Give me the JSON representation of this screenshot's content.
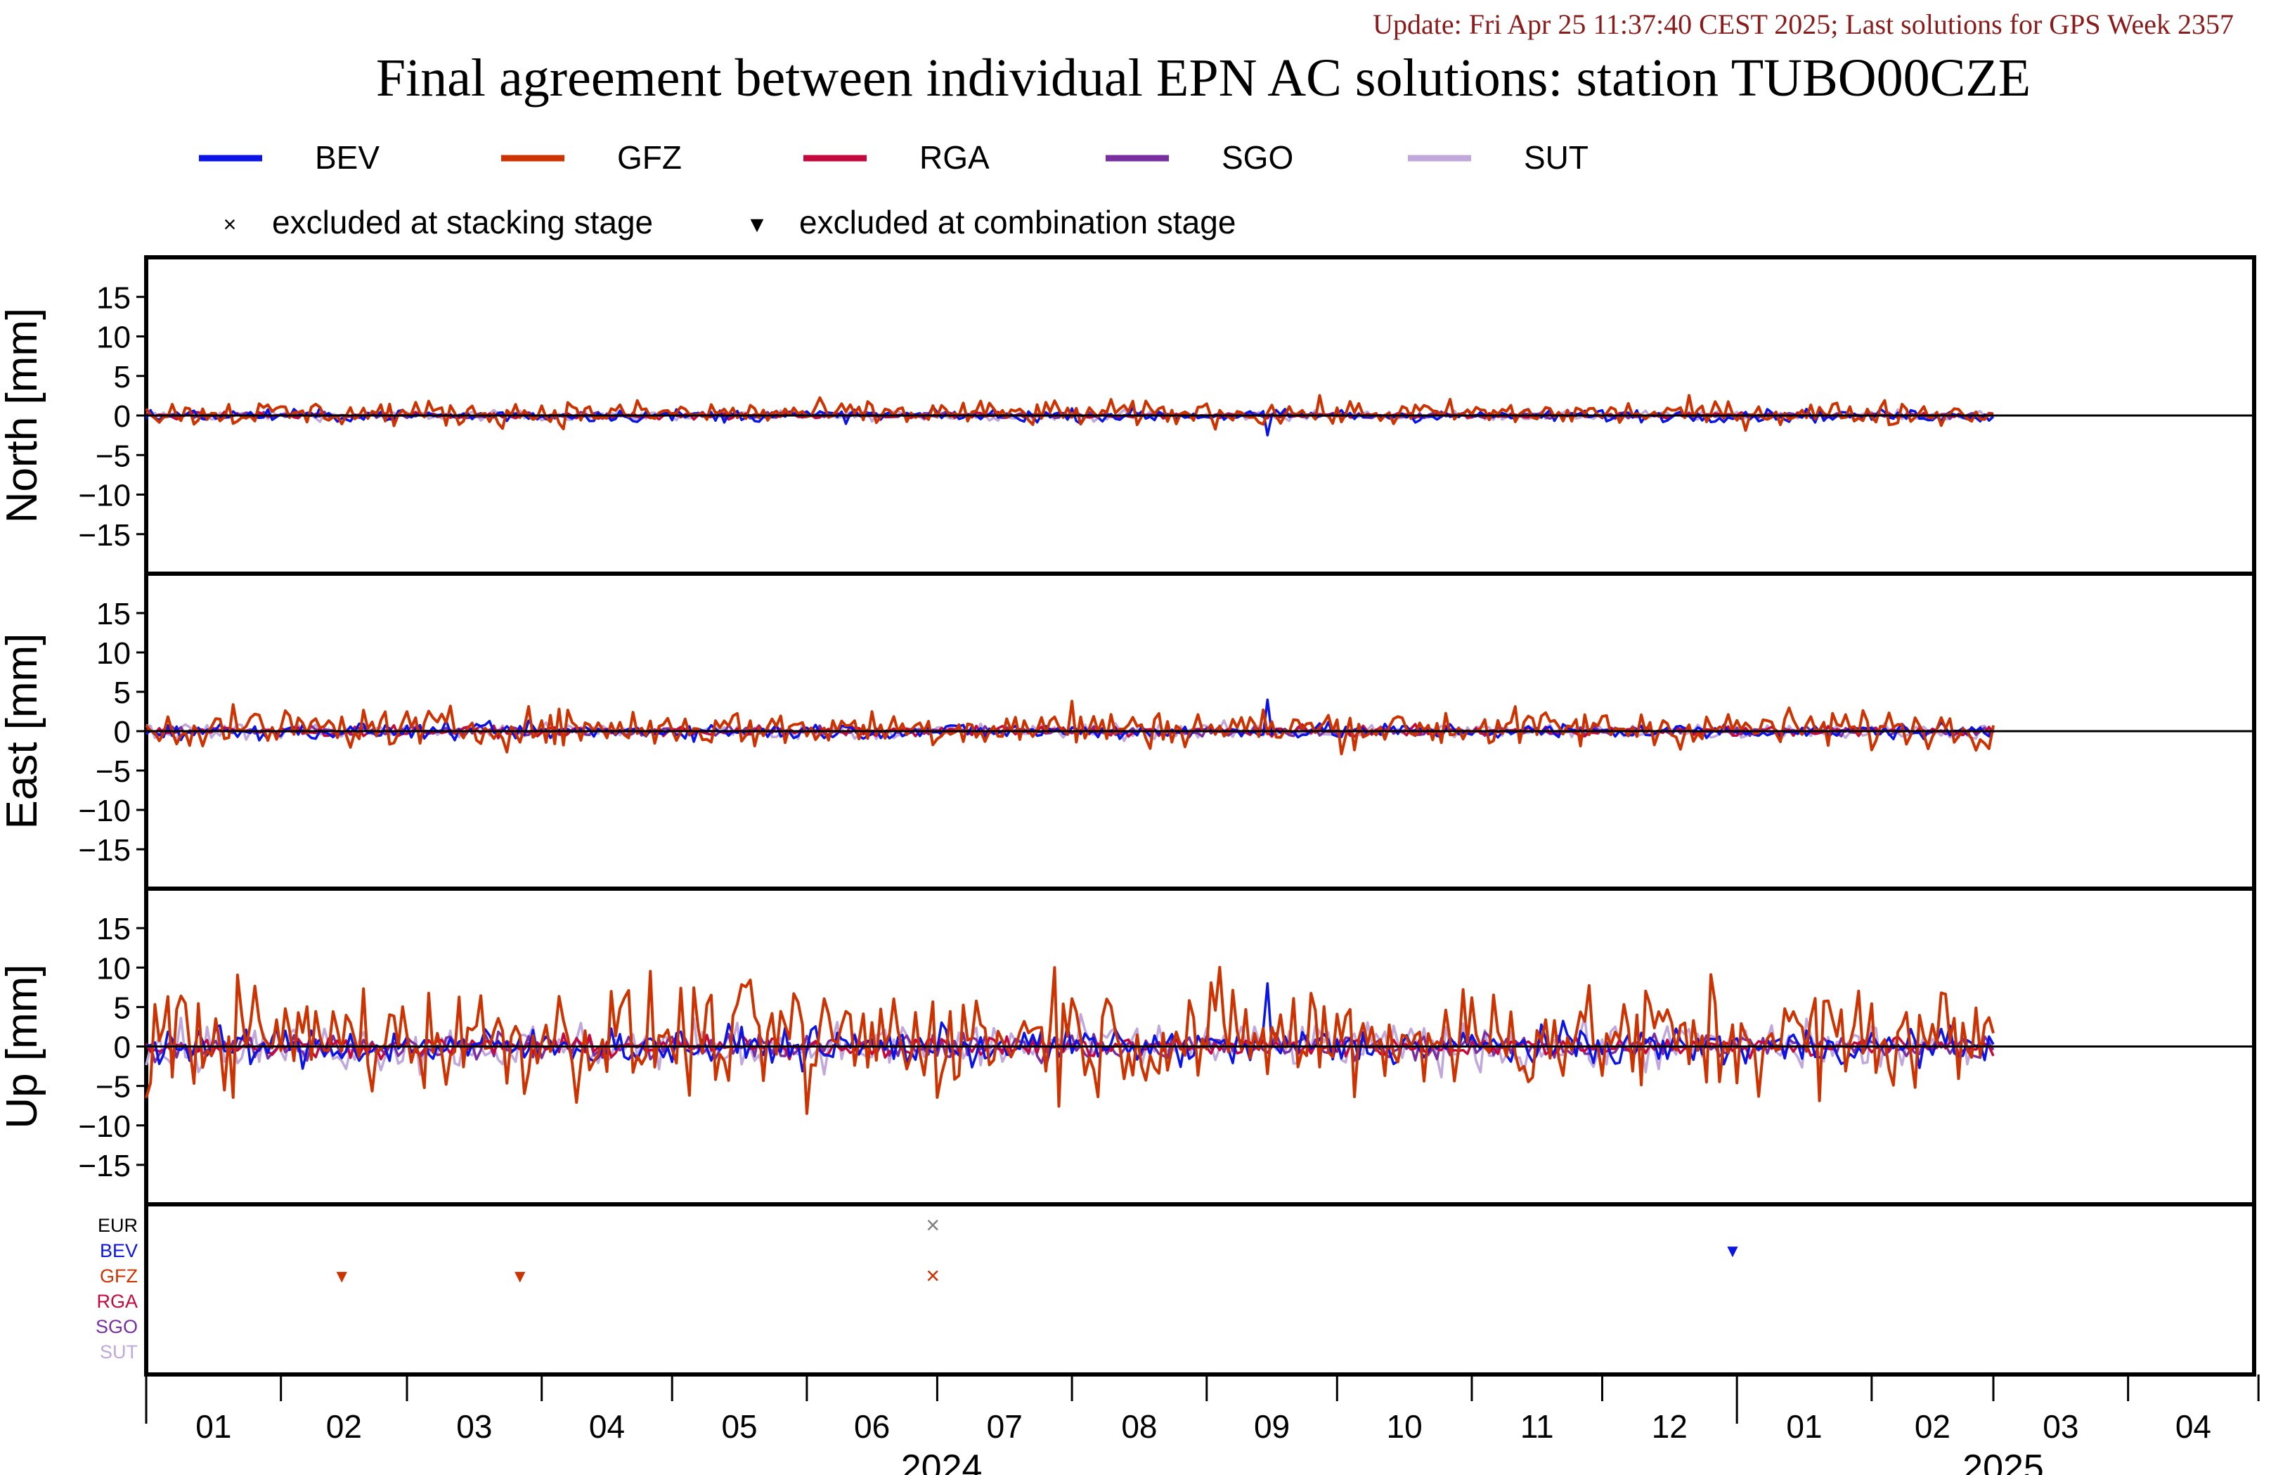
{
  "header": {
    "update_text": "Update: Fri Apr 25 11:37:40 CEST 2025; Last solutions for GPS Week 2357",
    "title": "Final agreement between individual EPN AC solutions: station TUBO00CZE"
  },
  "legend": {
    "series": [
      {
        "name": "BEV",
        "color": "#0a14e6"
      },
      {
        "name": "GFZ",
        "color": "#cc3300"
      },
      {
        "name": "RGA",
        "color": "#c40a3c"
      },
      {
        "name": "SGO",
        "color": "#7a2fa0"
      },
      {
        "name": "SUT",
        "color": "#c0a8dc"
      }
    ],
    "markers": [
      {
        "symbol": "×",
        "label": "excluded at stacking stage"
      },
      {
        "symbol": "▼",
        "label": "excluded at combination stage"
      }
    ]
  },
  "chart_data": {
    "type": "line",
    "x_range": [
      "2024-01-01",
      "2025-04-30"
    ],
    "months_2024": [
      "01",
      "02",
      "03",
      "04",
      "05",
      "06",
      "07",
      "08",
      "09",
      "10",
      "11",
      "12"
    ],
    "months_2025": [
      "01",
      "02",
      "03",
      "04"
    ],
    "years": [
      "2024",
      "2025"
    ],
    "panels": [
      {
        "id": "north",
        "ylabel": "North [mm]",
        "ylim": [
          -20,
          20
        ],
        "yticks": [
          -15,
          -10,
          -5,
          0,
          5,
          10,
          15
        ],
        "amplitude": {
          "BEV": 0.4,
          "GFZ": 0.8,
          "RGA": 0.2,
          "SGO": 0.2,
          "SUT": 0.3
        },
        "spikes": [
          {
            "series": "BEV",
            "date": "2024-09-15",
            "value": -2.5
          }
        ]
      },
      {
        "id": "east",
        "ylabel": "East [mm]",
        "ylim": [
          -20,
          20
        ],
        "yticks": [
          -15,
          -10,
          -5,
          0,
          5,
          10,
          15
        ],
        "amplitude": {
          "BEV": 0.5,
          "GFZ": 1.2,
          "RGA": 0.3,
          "SGO": 0.3,
          "SUT": 0.5
        },
        "spikes": [
          {
            "series": "BEV",
            "date": "2024-09-15",
            "value": 4
          },
          {
            "series": "GFZ",
            "date": "2024-08-01",
            "value": 3.8
          }
        ]
      },
      {
        "id": "up",
        "ylabel": "Up [mm]",
        "ylim": [
          -20,
          20
        ],
        "yticks": [
          -15,
          -10,
          -5,
          0,
          5,
          10,
          15
        ],
        "amplitude": {
          "BEV": 1.2,
          "GFZ": 3.5,
          "RGA": 0.6,
          "SGO": 0.8,
          "SUT": 1.5
        },
        "spikes": [
          {
            "series": "BEV",
            "date": "2024-09-15",
            "value": 8
          },
          {
            "series": "GFZ",
            "date": "2024-07-28",
            "value": 10
          },
          {
            "series": "GFZ",
            "date": "2024-06-01",
            "value": -8.5
          }
        ]
      }
    ],
    "exclusions": {
      "rows": [
        "EUR",
        "BEV",
        "GFZ",
        "RGA",
        "SGO",
        "SUT"
      ],
      "row_colors": [
        "#000000",
        "#0a14e6",
        "#cc3300",
        "#c40a3c",
        "#7a2fa0",
        "#c0a8dc"
      ],
      "markers": [
        {
          "row": "EUR",
          "date": "2024-06-30",
          "symbol": "×"
        },
        {
          "row": "BEV",
          "date": "2024-12-31",
          "symbol": "▼"
        },
        {
          "row": "GFZ",
          "date": "2024-02-15",
          "symbol": "▼"
        },
        {
          "row": "GFZ",
          "date": "2024-03-27",
          "symbol": "▼"
        },
        {
          "row": "GFZ",
          "date": "2024-06-30",
          "symbol": "×"
        }
      ]
    }
  }
}
